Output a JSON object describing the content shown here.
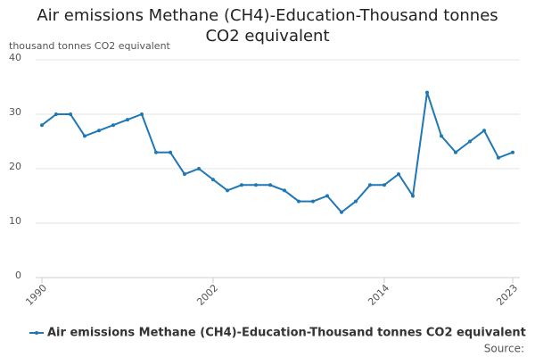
{
  "chart_data": {
    "type": "line",
    "title": "Air emissions Methane (CH4)-Education-Thousand tonnes CO2 equivalent",
    "y_label": "thousand tonnes CO2 equivalent",
    "x": [
      1990,
      1991,
      1992,
      1993,
      1994,
      1995,
      1996,
      1997,
      1998,
      1999,
      2000,
      2001,
      2002,
      2003,
      2004,
      2005,
      2006,
      2007,
      2008,
      2009,
      2010,
      2011,
      2012,
      2013,
      2014,
      2015,
      2016,
      2017,
      2018,
      2019,
      2020,
      2021,
      2022,
      2023
    ],
    "series": [
      {
        "name": "Air emissions Methane (CH4)-Education-Thousand tonnes CO2 equivalent",
        "color": "#1f77b4",
        "values": [
          28,
          30,
          30,
          26,
          27,
          28,
          29,
          30,
          23,
          23,
          19,
          20,
          18,
          16,
          17,
          17,
          17,
          16,
          14,
          14,
          15,
          12,
          14,
          17,
          17,
          19,
          15,
          34,
          26,
          23,
          25,
          27,
          22,
          23
        ]
      }
    ],
    "xlim": [
      1990,
      2023
    ],
    "xticks": [
      1990,
      2002,
      2014,
      2023
    ],
    "ylim": [
      0,
      40
    ],
    "yticks": [
      0,
      10,
      20,
      30,
      40
    ],
    "grid": true,
    "source": "Source:"
  }
}
